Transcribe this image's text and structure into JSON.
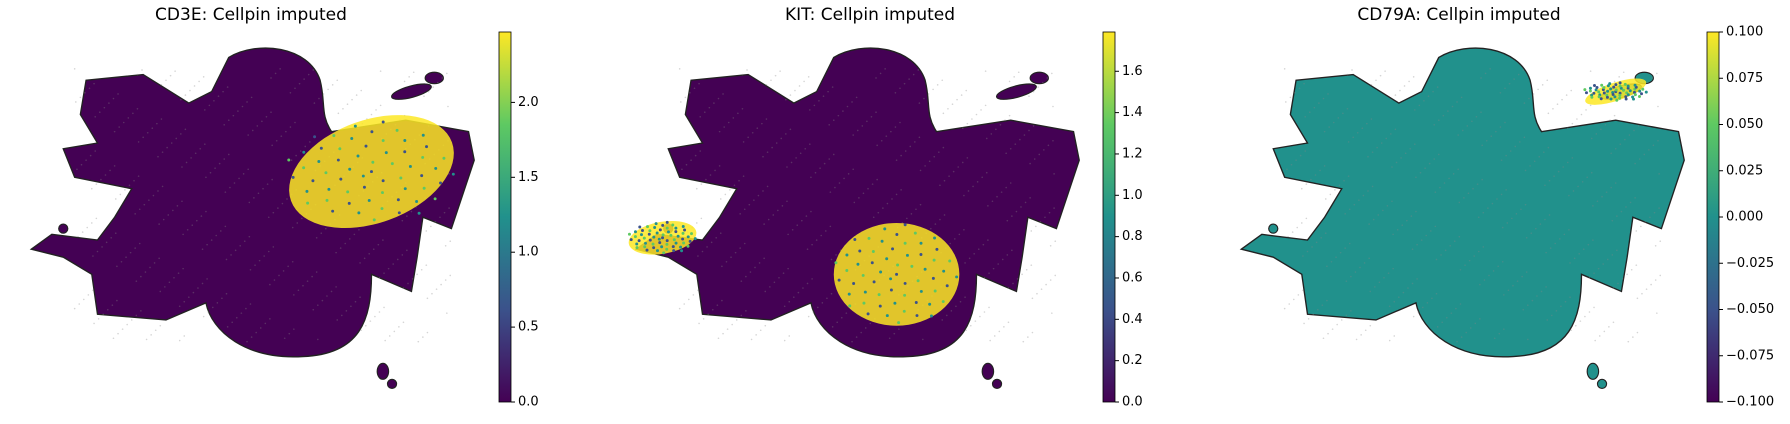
{
  "chart_data": [
    {
      "type": "scatter",
      "title": "CD3E: Cellpin imputed",
      "colormap": [
        "#440154",
        "#3b528b",
        "#21918c",
        "#5ec962",
        "#fde725"
      ],
      "clim": [
        0,
        2.47
      ],
      "cticks": [
        {
          "value": 0,
          "label": "0.0"
        },
        0.5,
        {
          "value": 1,
          "label": "1.0"
        },
        1.5,
        {
          "value": 2,
          "label": "2.0"
        }
      ]
    },
    {
      "type": "scatter",
      "title": "KIT: Cellpin imputed",
      "colormap": [
        "#440154",
        "#3b528b",
        "#21918c",
        "#5ec962",
        "#fde725"
      ],
      "clim": [
        0,
        1.79
      ],
      "cticks": [
        {
          "value": 0,
          "label": "0.0"
        },
        0.2,
        0.4,
        0.6,
        0.8,
        {
          "value": 1,
          "label": "1.0"
        },
        1.2,
        1.4,
        1.6
      ]
    },
    {
      "type": "scatter",
      "title": "CD79A: Cellpin imputed",
      "colormap": [
        "#440154",
        "#3b528b",
        "#21918c",
        "#5ec962",
        "#fde725"
      ],
      "clim": [
        -0.1,
        0.1
      ],
      "cticks": [
        {
          "value": -0.1,
          "label": "−0.100"
        },
        {
          "value": -0.075,
          "label": "−0.075"
        },
        {
          "value": -0.05,
          "label": "−0.050"
        },
        {
          "value": -0.025,
          "label": "−0.025"
        },
        {
          "value": 0,
          "label": "0.000"
        },
        {
          "value": 0.025,
          "label": "0.025"
        },
        {
          "value": 0.05,
          "label": "0.050"
        },
        {
          "value": 0.075,
          "label": "0.075"
        },
        {
          "value": 0.1,
          "label": "0.100"
        }
      ]
    }
  ]
}
